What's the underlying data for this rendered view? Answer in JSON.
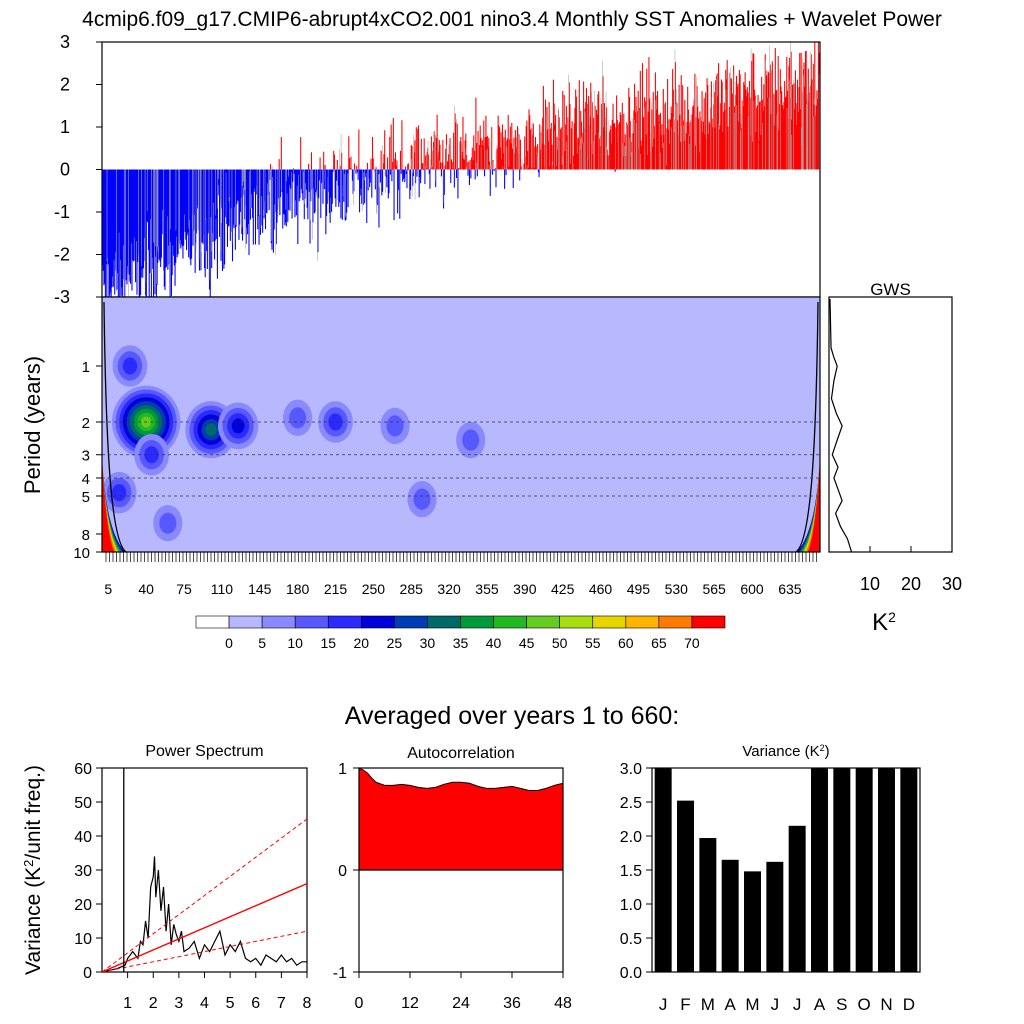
{
  "title": "4cmip6.f09_g17.CMIP6-abrupt4xCO2.001 nino3.4 Monthly SST Anomalies + Wavelet Power",
  "subtitle": "Averaged over years 1 to 660:",
  "colors": {
    "warm": "#ff0000",
    "cool": "#0000ff",
    "wavelet_bg": "#b8b8ff",
    "black": "#000000"
  },
  "chart_data": [
    {
      "id": "anomaly-timeseries",
      "type": "bar",
      "title": "",
      "ylabel": "",
      "ylim": [
        -3,
        3
      ],
      "yticks": [
        "3",
        "2",
        "1",
        "0",
        "-1",
        "-2",
        "-3"
      ],
      "x_range_years": [
        0,
        660
      ],
      "trend_description_points": [
        {
          "x": 0,
          "y": -2.8
        },
        {
          "x": 100,
          "y": -1.6
        },
        {
          "x": 150,
          "y": -0.9
        },
        {
          "x": 250,
          "y": -0.2
        },
        {
          "x": 350,
          "y": 0.4
        },
        {
          "x": 450,
          "y": 1.1
        },
        {
          "x": 550,
          "y": 1.5
        },
        {
          "x": 650,
          "y": 2.0
        }
      ]
    },
    {
      "id": "wavelet-power",
      "type": "heatmap",
      "ylabel": "Period (years)",
      "yticks": [
        "1",
        "2",
        "3",
        "4",
        "5",
        "8",
        "10"
      ],
      "xticks": [
        "5",
        "40",
        "75",
        "110",
        "145",
        "180",
        "215",
        "250",
        "285",
        "320",
        "355",
        "390",
        "425",
        "460",
        "495",
        "530",
        "565",
        "600",
        "635"
      ],
      "dashed_periods": [
        2,
        3,
        4,
        5
      ],
      "colorbar": {
        "labels": [
          "0",
          "5",
          "10",
          "15",
          "20",
          "25",
          "30",
          "35",
          "40",
          "45",
          "50",
          "55",
          "60",
          "65",
          "70"
        ],
        "colors": [
          "#ffffff",
          "#b8b8ff",
          "#8a8aff",
          "#5858ff",
          "#2a2aff",
          "#0000d8",
          "#003cb4",
          "#006a6a",
          "#009a3a",
          "#22b822",
          "#66cc22",
          "#a8dd10",
          "#e6d600",
          "#ffb400",
          "#ff7a00",
          "#ff0000"
        ]
      },
      "hotspots": [
        {
          "year": 25,
          "period": 1.0,
          "level": 3
        },
        {
          "year": 40,
          "period": 2.0,
          "level": 9
        },
        {
          "year": 100,
          "period": 2.2,
          "level": 6
        },
        {
          "year": 125,
          "period": 2.1,
          "level": 4
        },
        {
          "year": 15,
          "period": 4.8,
          "level": 3
        },
        {
          "year": 45,
          "period": 3.0,
          "level": 3
        },
        {
          "year": 215,
          "period": 2.0,
          "level": 3
        },
        {
          "year": 270,
          "period": 2.1,
          "level": 2
        },
        {
          "year": 295,
          "period": 5.2,
          "level": 2
        },
        {
          "year": 340,
          "period": 2.5,
          "level": 2
        },
        {
          "year": 60,
          "period": 7.0,
          "level": 2
        },
        {
          "year": 180,
          "period": 1.9,
          "level": 2
        }
      ]
    },
    {
      "id": "gws",
      "type": "line",
      "title": "GWS",
      "xlabel": "K",
      "xlabel_sup": "2",
      "xticks": [
        "10",
        "20",
        "30"
      ],
      "xlim": [
        0,
        30
      ],
      "x": [
        0.5,
        1.2,
        2.0,
        1.2,
        0.6,
        1.8,
        3.2,
        2.0,
        0.8,
        2.2,
        1.2,
        2.2,
        3.2,
        1.6,
        2.8,
        4.5,
        5.5
      ],
      "y": [
        0.8,
        0.9,
        1.0,
        1.2,
        1.5,
        1.8,
        2.1,
        2.5,
        3.0,
        3.5,
        4.0,
        4.6,
        5.3,
        6.2,
        7.3,
        8.5,
        10.0
      ]
    },
    {
      "id": "power-spectrum",
      "type": "line",
      "title": "Power Spectrum",
      "ylabel": "Variance (K",
      "ylabel_sup": "2",
      "ylabel_tail": "/unit freq.)",
      "xticks": [
        "1",
        "2",
        "3",
        "4",
        "5",
        "6",
        "7",
        "8"
      ],
      "yticks": [
        "0",
        "10",
        "20",
        "30",
        "40",
        "50",
        "60"
      ],
      "xlim": [
        0,
        8
      ],
      "ylim": [
        0,
        60
      ],
      "series": [
        {
          "name": "spectrum",
          "x": [
            0,
            0.3,
            0.6,
            0.9,
            1.0,
            1.2,
            1.4,
            1.5,
            1.6,
            1.7,
            1.8,
            1.9,
            2.0,
            2.05,
            2.1,
            2.2,
            2.3,
            2.4,
            2.5,
            2.6,
            2.7,
            2.8,
            2.9,
            3.0,
            3.1,
            3.2,
            3.4,
            3.6,
            3.8,
            4.0,
            4.2,
            4.4,
            4.6,
            4.8,
            5.0,
            5.2,
            5.4,
            5.6,
            5.8,
            6.0,
            6.2,
            6.4,
            6.6,
            6.8,
            7.0,
            7.2,
            7.4,
            7.6,
            7.8,
            8.0
          ],
          "y": [
            0,
            0.5,
            1,
            2,
            4,
            6,
            4,
            9,
            8,
            15,
            10,
            25,
            28,
            34,
            22,
            30,
            18,
            25,
            12,
            20,
            8,
            14,
            11,
            9,
            12,
            6,
            7,
            9,
            4,
            8,
            6,
            9,
            12,
            5,
            8,
            6,
            9,
            4,
            3,
            4,
            2,
            5,
            4,
            3,
            5,
            3,
            4,
            2,
            3,
            3
          ]
        },
        {
          "name": "red-noise",
          "x": [
            0,
            8
          ],
          "y": [
            0,
            26
          ]
        },
        {
          "name": "upper-bound",
          "x": [
            0,
            8
          ],
          "y": [
            0,
            45
          ]
        },
        {
          "name": "lower-bound",
          "x": [
            0,
            8
          ],
          "y": [
            0,
            12
          ]
        }
      ],
      "vertical_line_x": 0.85
    },
    {
      "id": "autocorrelation",
      "type": "area",
      "title": "Autocorrelation",
      "xticks": [
        "0",
        "12",
        "24",
        "36",
        "48"
      ],
      "yticks": [
        "1",
        "0",
        "-1"
      ],
      "xlim": [
        0,
        48
      ],
      "ylim": [
        -1,
        1
      ],
      "x": [
        0,
        1,
        2,
        3,
        4,
        6,
        8,
        10,
        12,
        14,
        16,
        18,
        20,
        22,
        24,
        26,
        28,
        30,
        32,
        34,
        36,
        38,
        40,
        42,
        44,
        46,
        48
      ],
      "y": [
        1.0,
        0.98,
        0.95,
        0.9,
        0.86,
        0.83,
        0.83,
        0.84,
        0.83,
        0.81,
        0.8,
        0.81,
        0.84,
        0.86,
        0.86,
        0.85,
        0.82,
        0.8,
        0.8,
        0.81,
        0.82,
        0.8,
        0.78,
        0.78,
        0.8,
        0.83,
        0.85
      ]
    },
    {
      "id": "monthly-variance",
      "type": "bar",
      "title": "Variance (K",
      "title_sup": "2",
      "title_tail": ")",
      "categories": [
        "J",
        "F",
        "M",
        "A",
        "M",
        "J",
        "J",
        "A",
        "S",
        "O",
        "N",
        "D"
      ],
      "values": [
        3.0,
        2.52,
        1.97,
        1.65,
        1.48,
        1.62,
        2.15,
        3.0,
        3.0,
        3.0,
        3.0,
        3.0
      ],
      "yticks": [
        "0.0",
        "0.5",
        "1.0",
        "1.5",
        "2.0",
        "2.5",
        "3.0"
      ],
      "ylim": [
        0,
        3
      ]
    }
  ]
}
